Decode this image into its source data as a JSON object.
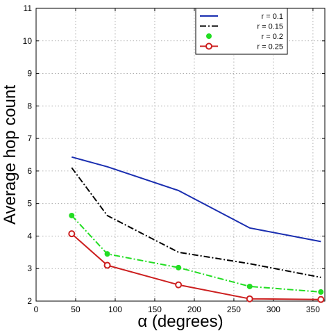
{
  "chart_data": {
    "type": "line",
    "title": "",
    "xlabel": "α (degrees)",
    "ylabel": "Average hop count",
    "xlim": [
      0,
      365
    ],
    "ylim": [
      2,
      11
    ],
    "xticks": [
      0,
      50,
      100,
      150,
      200,
      250,
      300,
      350
    ],
    "yticks": [
      2,
      3,
      4,
      5,
      6,
      7,
      8,
      9,
      10,
      11
    ],
    "grid": true,
    "legend_position": "top-right",
    "x": [
      45,
      90,
      180,
      270,
      360
    ],
    "series": [
      {
        "name": "r = 0.1",
        "values": [
          6.43,
          6.13,
          5.4,
          4.25,
          3.83
        ],
        "color": "#1a2eb0",
        "style": "solid",
        "marker": "none"
      },
      {
        "name": "r = 0.15",
        "values": [
          6.1,
          4.63,
          3.5,
          3.15,
          2.73
        ],
        "color": "#000000",
        "style": "dashdot",
        "marker": "none"
      },
      {
        "name": "r = 0.2",
        "values": [
          4.63,
          3.45,
          3.03,
          2.45,
          2.28
        ],
        "color": "#22dd22",
        "style": "dashdot",
        "marker": "dot"
      },
      {
        "name": "r = 0.25",
        "values": [
          4.07,
          3.1,
          2.5,
          2.07,
          2.05
        ],
        "color": "#cc1f1f",
        "style": "solid",
        "marker": "circle"
      }
    ]
  }
}
